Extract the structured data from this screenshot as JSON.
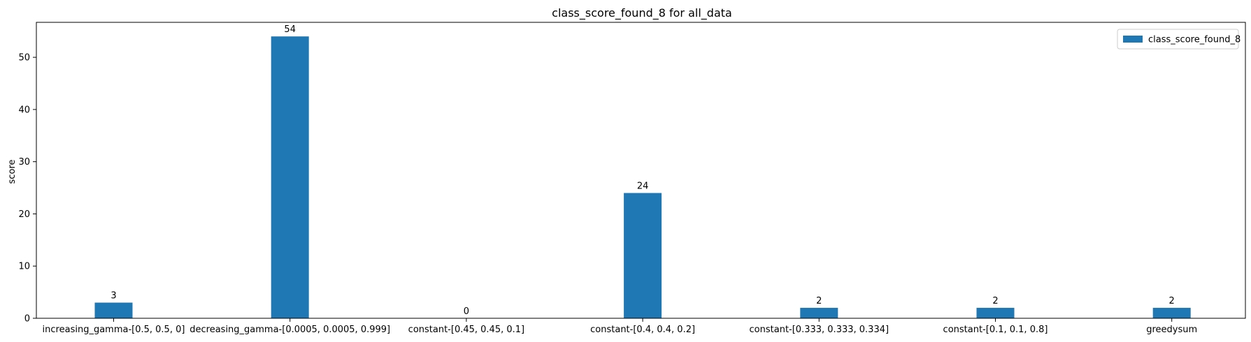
{
  "chart_data": {
    "type": "bar",
    "title": "class_score_found_8 for all_data",
    "xlabel": "",
    "ylabel": "score",
    "categories": [
      "increasing_gamma-[0.5, 0.5, 0]",
      "decreasing_gamma-[0.0005, 0.0005, 0.999]",
      "constant-[0.45, 0.45, 0.1]",
      "constant-[0.4, 0.4, 0.2]",
      "constant-[0.333, 0.333, 0.334]",
      "constant-[0.1, 0.1, 0.8]",
      "greedysum"
    ],
    "series": [
      {
        "name": "class_score_found_8",
        "color": "#1f77b4",
        "values": [
          3,
          54,
          0,
          24,
          2,
          2,
          2
        ]
      }
    ],
    "ylim": [
      0,
      56.7
    ],
    "yticks": [
      0,
      10,
      20,
      30,
      40,
      50
    ],
    "grid": false,
    "legend_position": "top-right",
    "data_labels": true
  }
}
